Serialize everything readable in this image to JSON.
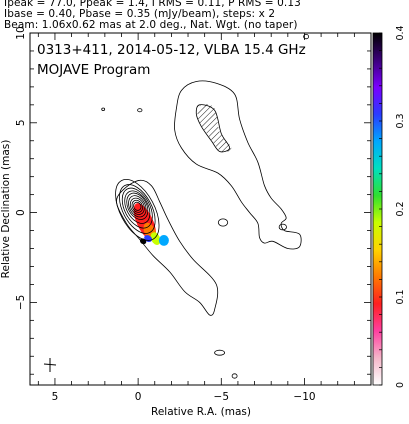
{
  "header": {
    "line1": "Ipeak = 77.0, Ppeak = 1.4, I RMS = 0.11, P RMS = 0.13",
    "line2": "Ibase = 0.40, Pbase = 0.35 (mJy/beam), steps: x 2",
    "line3": "Beam: 1.06x0.62 mas at 2.0 deg., Nat. Wgt. (no taper)"
  },
  "chart_data": {
    "type": "contour",
    "title": "0313+411, 2014-05-12, VLBA 15.4 GHz",
    "subtitle": "MOJAVE Program",
    "xlabel": "Relative R.A. (mas)",
    "ylabel": "Relative Declination (mas)",
    "xlim": [
      6.5,
      -14.0
    ],
    "ylim": [
      -9.6,
      10.0
    ],
    "x_ticks": [
      5,
      0,
      -5,
      -10
    ],
    "x_tick_labels": [
      "5",
      "0",
      "−5",
      "−10"
    ],
    "y_ticks": [
      10,
      5,
      0,
      -5
    ],
    "y_tick_labels": [
      "10",
      "5",
      "0",
      "−5"
    ],
    "colorbar": {
      "min": 0,
      "max": 0.4,
      "ticks": [
        0,
        0.1,
        0.2,
        0.3,
        0.4
      ],
      "tick_labels": [
        "0",
        "0.1",
        "0.2",
        "0.3",
        "0.4"
      ],
      "colors": [
        "#ffffff",
        "#f5b6c9",
        "#ff3fa0",
        "#ff2020",
        "#ff7a00",
        "#ffd400",
        "#c8ff00",
        "#2fe02f",
        "#00e0c0",
        "#00a8ff",
        "#2a3cff",
        "#7a00ff",
        "#3b007a",
        "#000000"
      ]
    },
    "core": {
      "x": 0.0,
      "y": 0.0
    },
    "contours": [
      {
        "x": 0.05,
        "y": 0.15,
        "rx": 2.0,
        "ry": 0.95,
        "angle": 62
      },
      {
        "x": 0.05,
        "y": 0.2,
        "rx": 1.6,
        "ry": 0.8,
        "angle": 62
      },
      {
        "x": 0.05,
        "y": 0.25,
        "rx": 1.3,
        "ry": 0.7,
        "angle": 62
      },
      {
        "x": 0.05,
        "y": 0.3,
        "rx": 1.05,
        "ry": 0.6,
        "angle": 62
      },
      {
        "x": 0.05,
        "y": 0.35,
        "rx": 0.85,
        "ry": 0.52,
        "angle": 62
      },
      {
        "x": 0.05,
        "y": 0.35,
        "rx": 0.68,
        "ry": 0.44,
        "angle": 62
      },
      {
        "x": 0.05,
        "y": 0.35,
        "rx": 0.52,
        "ry": 0.36,
        "angle": 62
      },
      {
        "x": 0.05,
        "y": 0.35,
        "rx": 0.38,
        "ry": 0.28,
        "angle": 62
      },
      {
        "x": 0.05,
        "y": 0.35,
        "rx": 0.25,
        "ry": 0.2,
        "angle": 62
      }
    ],
    "polarization_blobs": [
      {
        "x": -0.4,
        "y": -0.5,
        "rx": 1.2,
        "ry": 0.45,
        "angle": 65,
        "color": "#ff2020"
      },
      {
        "x": -0.7,
        "y": -1.05,
        "rx": 0.55,
        "ry": 0.3,
        "angle": 65,
        "color": "#ff7a00"
      },
      {
        "x": -1.05,
        "y": -1.45,
        "rx": 0.4,
        "ry": 0.25,
        "angle": 65,
        "color": "#c8ff00"
      },
      {
        "x": -1.55,
        "y": -1.55,
        "rx": 0.3,
        "ry": 0.3,
        "angle": 0,
        "color": "#00a8ff"
      },
      {
        "x": -0.6,
        "y": -1.45,
        "rx": 0.25,
        "ry": 0.18,
        "angle": 30,
        "color": "#2a3cff"
      },
      {
        "x": -0.3,
        "y": -1.6,
        "rx": 0.2,
        "ry": 0.15,
        "angle": 30,
        "color": "#000000"
      }
    ],
    "jet_outline": [
      [
        -4.7,
        7.2
      ],
      [
        -5.8,
        6.6
      ],
      [
        -6.1,
        5.2
      ],
      [
        -6.6,
        3.9
      ],
      [
        -7.2,
        2.8
      ],
      [
        -7.6,
        1.5
      ],
      [
        -8.0,
        0.8
      ],
      [
        -8.6,
        0.2
      ],
      [
        -8.9,
        -0.3
      ],
      [
        -8.6,
        -0.6
      ],
      [
        -8.8,
        -1.0
      ],
      [
        -9.7,
        -1.2
      ],
      [
        -9.7,
        -1.9
      ],
      [
        -9.0,
        -2.0
      ],
      [
        -8.1,
        -1.6
      ],
      [
        -7.6,
        -1.7
      ],
      [
        -7.3,
        -1.4
      ],
      [
        -7.2,
        -0.6
      ],
      [
        -6.7,
        0.0
      ],
      [
        -6.2,
        0.6
      ],
      [
        -5.6,
        1.5
      ],
      [
        -4.8,
        2.2
      ],
      [
        -3.5,
        2.7
      ],
      [
        -2.6,
        3.6
      ],
      [
        -2.2,
        4.6
      ],
      [
        -2.3,
        5.8
      ],
      [
        -2.6,
        6.8
      ],
      [
        -3.5,
        7.3
      ]
    ],
    "extended_outline": [
      [
        1.3,
        0.6
      ],
      [
        0.8,
        1.35
      ],
      [
        -0.1,
        1.8
      ],
      [
        -0.8,
        1.5
      ],
      [
        -1.3,
        0.6
      ],
      [
        -1.8,
        -0.4
      ],
      [
        -2.5,
        -1.6
      ],
      [
        -3.3,
        -2.6
      ],
      [
        -4.7,
        -4.0
      ],
      [
        -4.6,
        -5.4
      ],
      [
        -4.3,
        -5.7
      ],
      [
        -3.7,
        -5.0
      ],
      [
        -2.8,
        -4.4
      ],
      [
        -1.9,
        -3.3
      ],
      [
        -0.9,
        -2.4
      ],
      [
        -0.1,
        -1.5
      ],
      [
        0.7,
        -0.6
      ]
    ],
    "inner_ridge": [
      [
        -3.7,
        6.0
      ],
      [
        -4.6,
        5.7
      ],
      [
        -5.0,
        4.4
      ],
      [
        -5.5,
        3.6
      ],
      [
        -4.9,
        3.4
      ],
      [
        -4.4,
        4.0
      ],
      [
        -3.8,
        4.8
      ],
      [
        -3.5,
        5.5
      ]
    ],
    "hatched_region": [
      [
        -3.8,
        6.0
      ],
      [
        -4.6,
        5.8
      ],
      [
        -4.9,
        4.5
      ],
      [
        -5.6,
        3.6
      ],
      [
        -5.0,
        3.4
      ],
      [
        -4.3,
        4.2
      ],
      [
        -3.6,
        5.2
      ]
    ],
    "islands": [
      {
        "x": -10.1,
        "y": 9.8,
        "rx": 0.15,
        "ry": 0.12
      },
      {
        "x": 2.1,
        "y": 5.75,
        "rx": 0.09,
        "ry": 0.07
      },
      {
        "x": -0.1,
        "y": 5.7,
        "rx": 0.13,
        "ry": 0.09
      },
      {
        "x": -5.1,
        "y": -0.55,
        "rx": 0.28,
        "ry": 0.2
      },
      {
        "x": -8.7,
        "y": -0.8,
        "rx": 0.22,
        "ry": 0.16
      },
      {
        "x": -4.9,
        "y": -7.8,
        "rx": 0.3,
        "ry": 0.14
      },
      {
        "x": -5.8,
        "y": -9.1,
        "rx": 0.15,
        "ry": 0.12
      }
    ]
  }
}
